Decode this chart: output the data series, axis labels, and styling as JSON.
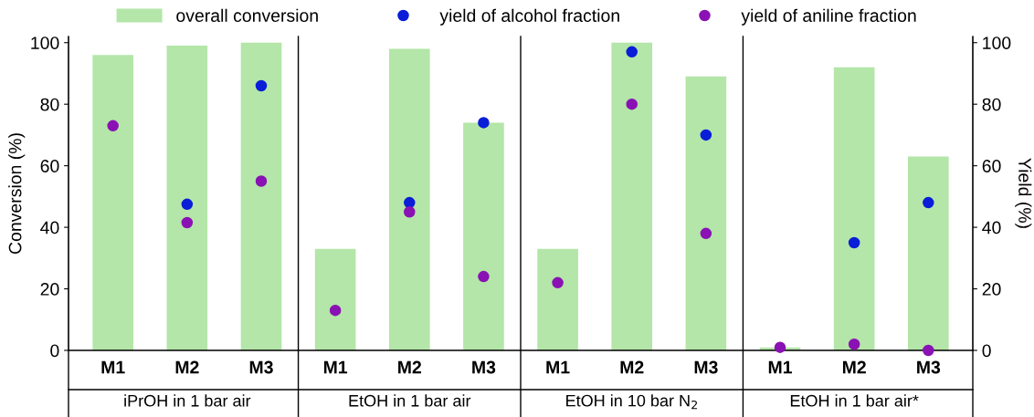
{
  "chart_data": {
    "type": "bar",
    "categories": [
      "M1",
      "M2",
      "M3",
      "M1",
      "M2",
      "M3",
      "M1",
      "M2",
      "M3",
      "M1",
      "M2",
      "M3"
    ],
    "annotations": [
      "iPrOH in 1 bar air",
      "EtOH in 1 bar air",
      "EtOH in 10 bar N$_{2}$",
      "EtOH in 1 bar air*"
    ],
    "ylabel": "Conversion (%)",
    "y2label": "Yield (%)",
    "ylim": [
      0,
      102
    ],
    "yticks": [
      0,
      20,
      40,
      60,
      80,
      100
    ],
    "y2lim": [
      0,
      102
    ],
    "y2ticks": [
      0,
      20,
      40,
      60,
      80,
      100
    ],
    "legend": "top",
    "marker": "circle",
    "series": [
      {
        "name": "overall conversion",
        "color": "#b3e6a8",
        "values": [
          96,
          99,
          100,
          33,
          98,
          74,
          33,
          100,
          89,
          1,
          92,
          63
        ]
      },
      {
        "name": "yield of alcohol fraction",
        "type": "scatter",
        "axis": "y2",
        "color": "#0a1ed8",
        "values": [
          null,
          47.5,
          86,
          null,
          48,
          74,
          null,
          97,
          70,
          null,
          35,
          48
        ]
      },
      {
        "name": "yield of aniline fraction",
        "type": "scatter",
        "axis": "y2",
        "color": "#8a12b4",
        "values": [
          73,
          41.5,
          55,
          13,
          45,
          24,
          22,
          80,
          38,
          1,
          2,
          0
        ]
      }
    ]
  }
}
